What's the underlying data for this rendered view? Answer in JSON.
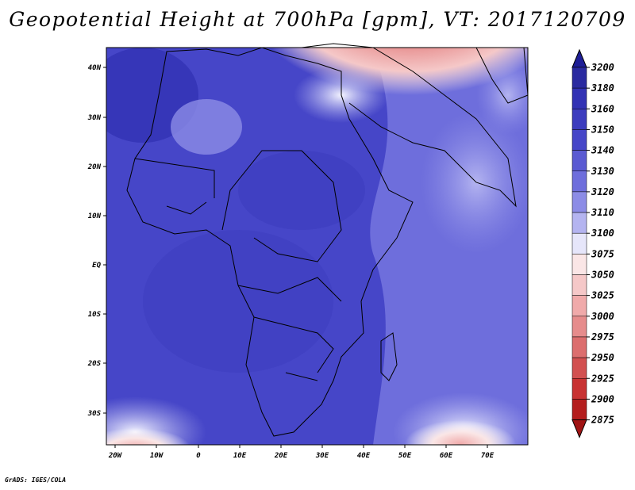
{
  "title": "Geopotential Height at 700hPa [gpm], VT: 2017120709",
  "credit": "GrADS: IGES/COLA",
  "map": {
    "lon_range": [
      -22,
      80
    ],
    "lat_range": [
      -37,
      45
    ],
    "x_ticks": [
      "20W",
      "10W",
      "0",
      "10E",
      "20E",
      "30E",
      "40E",
      "50E",
      "60E",
      "70E"
    ],
    "y_ticks": [
      "40N",
      "30N",
      "20N",
      "10N",
      "EQ",
      "10S",
      "20S",
      "30S"
    ]
  },
  "colorbar": {
    "levels": [
      "3200",
      "3180",
      "3160",
      "3150",
      "3140",
      "3130",
      "3120",
      "3110",
      "3100",
      "3075",
      "3050",
      "3025",
      "3000",
      "2975",
      "2950",
      "2925",
      "2900",
      "2875"
    ],
    "colors": [
      "#2a2aa0",
      "#3232b4",
      "#3c3cbe",
      "#4646c8",
      "#5a5ad2",
      "#6e6edc",
      "#8c8ce6",
      "#b4b4f0",
      "#e6e6fa",
      "#fae6e6",
      "#f5c8c8",
      "#f0aaaa",
      "#e68c8c",
      "#dc6e6e",
      "#d25050",
      "#c83232",
      "#b41e1e"
    ],
    "top_arrow_color": "#1e1e96",
    "bottom_arrow_color": "#a01414"
  }
}
